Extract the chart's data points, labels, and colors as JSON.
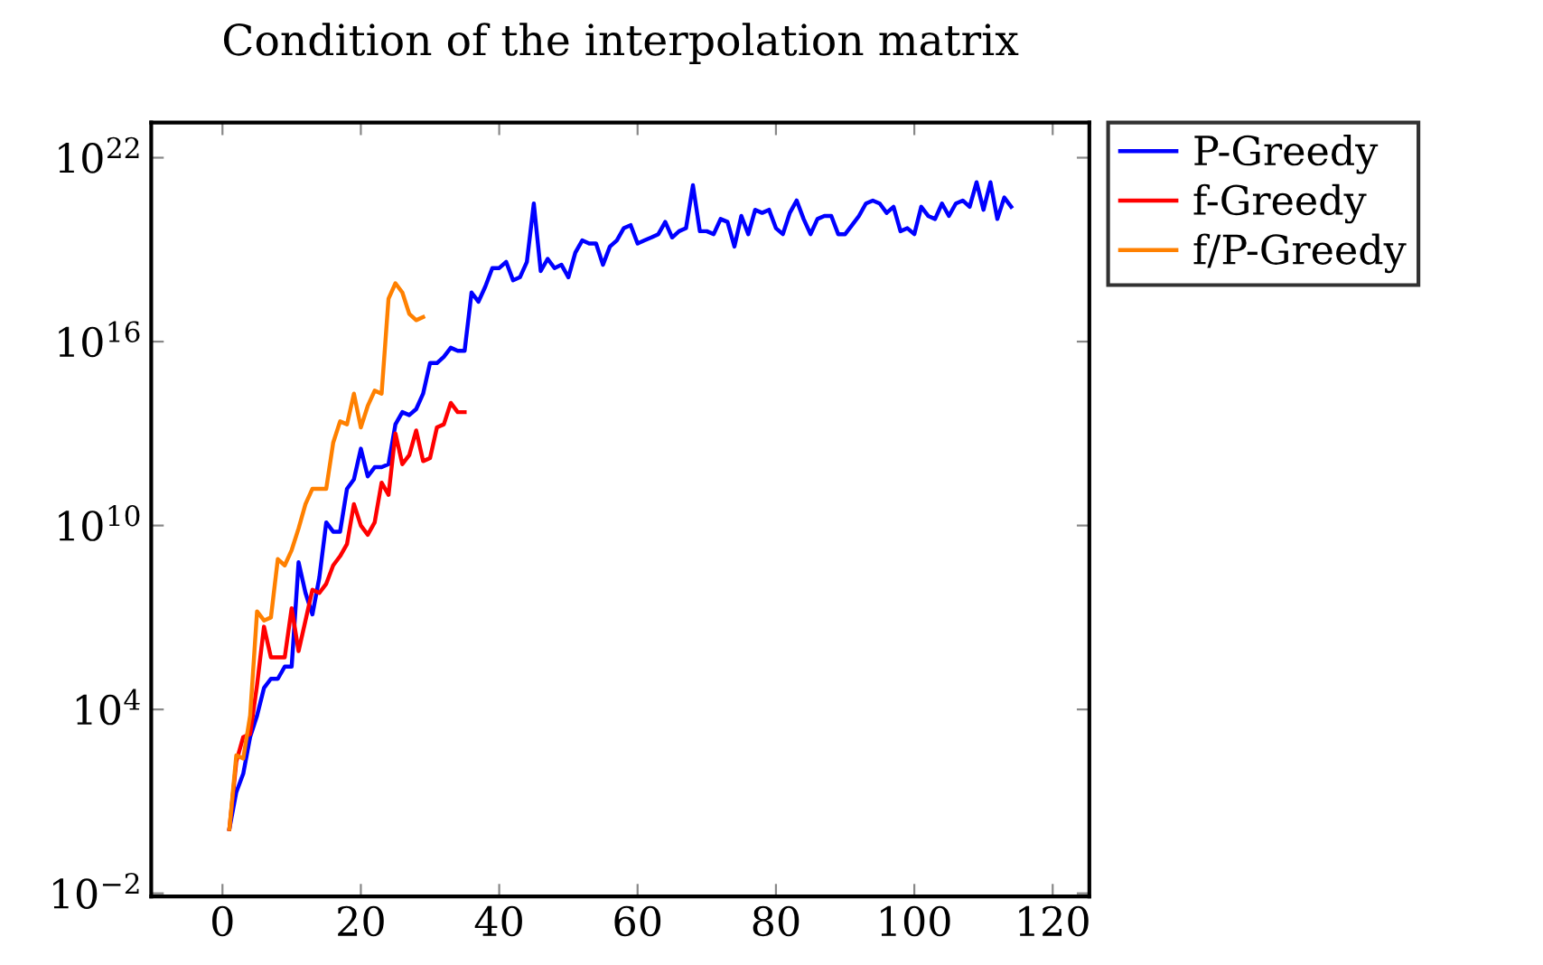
{
  "chart_data": {
    "type": "line",
    "title": "Condition of the interpolation matrix",
    "xlim": [
      -10.3,
      125.3
    ],
    "xticks": [
      0,
      20,
      40,
      60,
      80,
      100,
      120
    ],
    "ylim": [
      0.0079,
      1.4e+23
    ],
    "log": "y",
    "yticks": [
      {
        "value": 0.01,
        "label": "10$^{−2}$"
      },
      {
        "value": 10000.0,
        "label": "10$^{4}$"
      },
      {
        "value": 10000000000.0,
        "label": "10$^{10}$"
      },
      {
        "value": 1e+16,
        "label": "10$^{16}$"
      },
      {
        "value": 1e+22,
        "label": "10$^{22}$"
      }
    ],
    "grid": false,
    "legend": "top right",
    "marker": "none",
    "line_style": "solid",
    "series": [
      {
        "name": "P-Greedy",
        "color": "#0000ff",
        "x": [
          1,
          2,
          3,
          4,
          5,
          6,
          7,
          8,
          9,
          10,
          11,
          12,
          13,
          14,
          15,
          16,
          17,
          18,
          19,
          20,
          21,
          22,
          23,
          24,
          25,
          26,
          27,
          28,
          29,
          30,
          31,
          32,
          33,
          34,
          35,
          36,
          37,
          38,
          39,
          40,
          41,
          42,
          43,
          44,
          45,
          46,
          47,
          48,
          49,
          50,
          51,
          52,
          53,
          54,
          55,
          56,
          57,
          58,
          59,
          60,
          61,
          62,
          63,
          64,
          65,
          66,
          67,
          68,
          69,
          70,
          71,
          72,
          73,
          74,
          75,
          76,
          77,
          78,
          79,
          80,
          81,
          82,
          83,
          84,
          85,
          86,
          87,
          88,
          89,
          90,
          91,
          92,
          93,
          94,
          95,
          96,
          97,
          98,
          99,
          100,
          101,
          102,
          103,
          104,
          105,
          106,
          107,
          108,
          109,
          110,
          111,
          112,
          113,
          114
        ],
        "values": [
          1.26,
          20.0,
          80.0,
          1260.0,
          6300.0,
          50000.0,
          100000.0,
          100000.0,
          250000.0,
          250000.0,
          630000000.0,
          63000000.0,
          12600000.0,
          200000000.0,
          12600000000.0,
          6300000000.0,
          6300000000.0,
          158000000000.0,
          320000000000.0,
          3200000000000.0,
          400000000000.0,
          800000000000.0,
          800000000000.0,
          1000000000000.0,
          20000000000000.0,
          50000000000000.0,
          40000000000000.0,
          63000000000000.0,
          200000000000000.0,
          2000000000000000.0,
          2000000000000000.0,
          3200000000000000.0,
          6300000000000000.0,
          5000000000000000.0,
          5000000000000000.0,
          4e+17,
          2e+17,
          6.3e+17,
          2.5e+18,
          2.5e+18,
          4e+18,
          1e+18,
          1.26e+18,
          4e+18,
          3.2e+20,
          2e+18,
          5e+18,
          2.5e+18,
          3.2e+18,
          1.26e+18,
          8e+18,
          2e+19,
          1.58e+19,
          1.58e+19,
          3.2e+18,
          1.26e+19,
          2e+19,
          5e+19,
          6.3e+19,
          1.58e+19,
          2e+19,
          2.5e+19,
          3.2e+19,
          8e+19,
          2.5e+19,
          4e+19,
          5e+19,
          1.26e+21,
          4e+19,
          4e+19,
          3.2e+19,
          1e+20,
          8e+19,
          1.26e+19,
          1.26e+20,
          3.2e+19,
          2e+20,
          1.58e+20,
          2e+20,
          5e+19,
          3.2e+19,
          1.58e+20,
          4e+20,
          1e+20,
          3.2e+19,
          1e+20,
          1.26e+20,
          1.26e+20,
          3.2e+19,
          3.2e+19,
          6.3e+19,
          1.26e+20,
          3.2e+20,
          4e+20,
          3.2e+20,
          1.58e+20,
          2.5e+20,
          4e+19,
          5e+19,
          3.2e+19,
          2.5e+20,
          1.26e+20,
          1e+20,
          3.2e+20,
          1.26e+20,
          3.2e+20,
          4e+20,
          2.5e+20,
          1.58e+21,
          2e+20,
          1.58e+21,
          1e+20,
          5e+20,
          2.5e+20
        ]
      },
      {
        "name": "f-Greedy",
        "color": "#ff0000",
        "x": [
          1,
          2,
          3,
          4,
          5,
          6,
          7,
          8,
          9,
          10,
          11,
          12,
          13,
          14,
          15,
          16,
          17,
          18,
          19,
          20,
          21,
          22,
          23,
          24,
          25,
          26,
          27,
          28,
          29,
          30,
          31,
          32,
          33,
          34,
          35
        ],
        "values": [
          1.26,
          200.0,
          1260.0,
          1580.0,
          63000.0,
          5000000.0,
          500000.0,
          500000.0,
          500000.0,
          20000000.0,
          800000.0,
          8000000.0,
          80000000.0,
          63000000.0,
          126000000.0,
          500000000.0,
          1000000000.0,
          2500000000.0,
          50000000000.0,
          10000000000.0,
          5000000000.0,
          12600000000.0,
          250000000000.0,
          100000000000.0,
          10000000000000.0,
          1000000000000.0,
          2000000000000.0,
          12600000000000.0,
          1260000000000.0,
          1580000000000.0,
          15800000000000.0,
          20000000000000.0,
          100000000000000.0,
          50000000000000.0,
          50000000000000.0
        ]
      },
      {
        "name": "f/P-Greedy",
        "color": "#ff8000",
        "x": [
          1,
          2,
          3,
          4,
          5,
          6,
          7,
          8,
          9,
          10,
          11,
          12,
          13,
          14,
          15,
          16,
          17,
          18,
          19,
          20,
          21,
          22,
          23,
          24,
          25,
          26,
          27,
          28,
          29
        ],
        "values": [
          1.26,
          320.0,
          250.0,
          6300.0,
          15800000.0,
          8000000.0,
          10000000.0,
          800000000.0,
          500000000.0,
          1580000000.0,
          8000000000.0,
          50000000000.0,
          158000000000.0,
          158000000000.0,
          158000000000.0,
          5000000000000.0,
          25000000000000.0,
          20000000000000.0,
          200000000000000.0,
          15800000000000.0,
          80000000000000.0,
          250000000000000.0,
          200000000000000.0,
          2.5e+17,
          8e+17,
          4e+17,
          8e+16,
          5e+16,
          6.3e+16
        ]
      }
    ]
  }
}
